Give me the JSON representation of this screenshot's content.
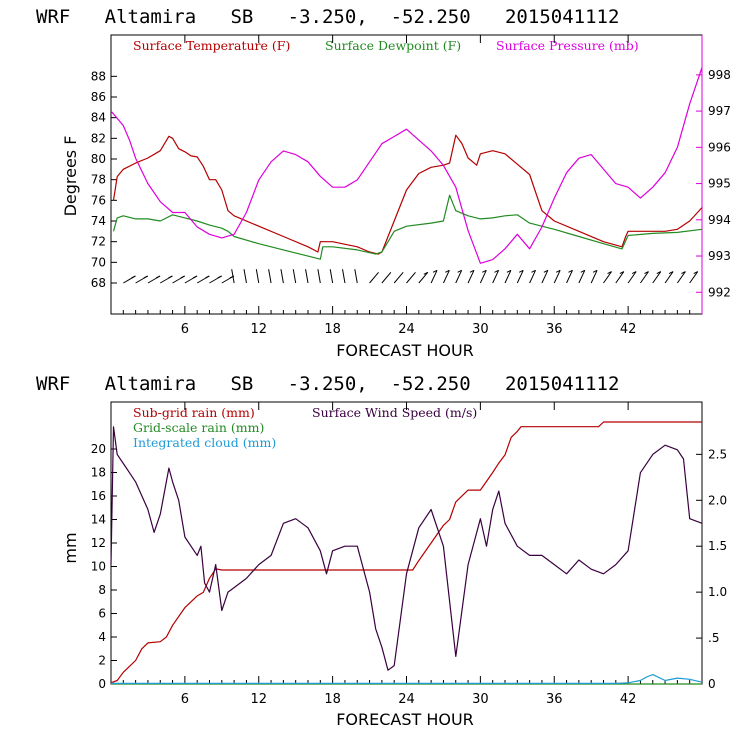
{
  "chart_data": [
    {
      "type": "line",
      "title": "WRF   Altamira   SB   -3.250,  -52.250   2015041112",
      "xlabel": "FORECAST HOUR",
      "ylabel": "Degrees F",
      "xlim": [
        0,
        48
      ],
      "xticks": [
        6,
        12,
        18,
        24,
        30,
        36,
        42
      ],
      "ylim_left": [
        65,
        92
      ],
      "yticks_left": [
        68,
        70,
        72,
        74,
        76,
        78,
        80,
        82,
        84,
        86,
        88
      ],
      "ylim_right": [
        991.4,
        999.1
      ],
      "yticks_right": [
        992,
        993,
        994,
        995,
        996,
        997,
        998
      ],
      "series": [
        {
          "name": "Surface Temperature (F)",
          "color": "#b40000",
          "axis": "left",
          "x": [
            0.2,
            0.5,
            1,
            2,
            3,
            4,
            4.7,
            5,
            5.5,
            6,
            6.5,
            7,
            7.5,
            8,
            8.5,
            9,
            9.5,
            10,
            12,
            14,
            16,
            16.8,
            17,
            18,
            20,
            21,
            21.7,
            22,
            23,
            24,
            25,
            26,
            27,
            27.5,
            28,
            28.5,
            29,
            29.7,
            30,
            31,
            32,
            33,
            34,
            35,
            36,
            38,
            40,
            41.5,
            41.8,
            42,
            44,
            45,
            46,
            47,
            48
          ],
          "y": [
            76,
            78.3,
            79,
            79.6,
            80.1,
            80.8,
            82.2,
            82,
            81,
            80.7,
            80.3,
            80.2,
            79.3,
            78,
            78,
            77,
            75,
            74.5,
            73.5,
            72.5,
            71.5,
            71,
            72,
            72,
            71.5,
            71,
            70.8,
            71,
            74,
            77,
            78.6,
            79.2,
            79.4,
            79.6,
            82.3,
            81.5,
            80.1,
            79.4,
            80.5,
            80.8,
            80.5,
            79.5,
            78.5,
            75,
            74,
            73,
            72,
            71.5,
            72.5,
            73,
            73,
            73,
            73.2,
            74,
            75.3
          ]
        },
        {
          "name": "Surface Dewpoint (F)",
          "color": "#228b22",
          "axis": "left",
          "x": [
            0.2,
            0.5,
            1,
            2,
            3,
            4,
            5,
            6,
            7,
            8,
            9,
            9.5,
            10,
            12,
            14,
            16,
            17,
            17.2,
            18,
            20,
            21.5,
            22,
            23,
            24,
            26,
            27,
            27.5,
            28,
            29,
            30,
            31,
            32,
            33,
            34,
            35,
            36,
            38,
            40,
            41.5,
            42,
            44,
            46,
            48
          ],
          "y": [
            73,
            74.3,
            74.5,
            74.2,
            74.2,
            74,
            74.6,
            74.3,
            74,
            73.6,
            73.3,
            73,
            72.5,
            71.8,
            71.2,
            70.6,
            70.3,
            71.5,
            71.5,
            71.2,
            70.8,
            71,
            73,
            73.5,
            73.8,
            74,
            76.5,
            75,
            74.5,
            74.2,
            74.3,
            74.5,
            74.6,
            73.8,
            73.5,
            73.2,
            72.5,
            71.8,
            71.3,
            72.6,
            72.8,
            72.9,
            73.2
          ]
        },
        {
          "name": "Surface Pressure (mb)",
          "color": "#dd00dd",
          "axis": "right",
          "x": [
            0,
            0.5,
            1,
            1.5,
            2,
            3,
            4,
            5,
            6,
            7,
            8,
            9,
            10,
            11,
            12,
            13,
            14,
            15,
            16,
            17,
            18,
            19,
            20,
            21,
            22,
            23,
            24,
            25,
            26,
            27,
            28,
            29,
            30,
            31,
            32,
            33,
            34,
            35,
            36,
            37,
            38,
            39,
            40,
            41,
            42,
            43,
            44,
            45,
            46,
            47,
            48
          ],
          "y": [
            997,
            996.8,
            996.6,
            996.2,
            995.7,
            995,
            994.5,
            994.2,
            994.2,
            993.8,
            993.6,
            993.5,
            993.6,
            994.2,
            995.1,
            995.6,
            995.9,
            995.8,
            995.6,
            995.2,
            994.9,
            994.9,
            995.1,
            995.6,
            996.1,
            996.3,
            996.5,
            996.2,
            995.9,
            995.5,
            994.9,
            993.7,
            992.8,
            992.9,
            993.2,
            993.6,
            993.2,
            993.8,
            994.6,
            995.3,
            995.7,
            995.8,
            995.4,
            995,
            994.9,
            994.6,
            994.9,
            995.3,
            996,
            997.2,
            998.2
          ]
        }
      ],
      "wind_barbs": {
        "description": "wind barbs at 68 F level, one per forecast hour"
      }
    },
    {
      "type": "line",
      "title": "WRF   Altamira   SB   -3.250,  -52.250   2015041112",
      "xlabel": "FORECAST HOUR",
      "ylabel": "mm",
      "xlim": [
        0,
        48
      ],
      "xticks": [
        6,
        12,
        18,
        24,
        30,
        36,
        42
      ],
      "ylim_left": [
        0,
        24
      ],
      "yticks_left": [
        0,
        2,
        4,
        6,
        8,
        10,
        12,
        14,
        16,
        18,
        20
      ],
      "ylim_right": [
        0,
        3.07
      ],
      "yticks_right": [
        0,
        0.5,
        1.0,
        1.5,
        2.0,
        2.5
      ],
      "ytick_labels_right": [
        "0",
        ".5",
        "1.0",
        "1.5",
        "2.0",
        "2.5"
      ],
      "series": [
        {
          "name": "Sub-grid rain (mm)",
          "color": "#b40000",
          "axis": "left",
          "x": [
            0,
            0.5,
            1,
            2,
            2.5,
            3,
            4,
            4.5,
            5,
            6,
            7,
            7.5,
            8,
            8.5,
            9,
            12,
            18,
            24,
            24.5,
            25,
            26,
            27,
            27.5,
            28,
            29,
            30,
            31,
            31.5,
            32,
            32.5,
            33,
            33.3,
            39.6,
            40,
            48
          ],
          "y": [
            0.1,
            0.3,
            1,
            2,
            3,
            3.5,
            3.6,
            4,
            5,
            6.5,
            7.5,
            7.8,
            9,
            9.8,
            9.7,
            9.7,
            9.7,
            9.7,
            9.7,
            10.5,
            12,
            13.5,
            14,
            15.5,
            16.5,
            16.5,
            18,
            18.8,
            19.5,
            21,
            21.5,
            21.9,
            21.9,
            22.3,
            22.3
          ]
        },
        {
          "name": "Grid-scale rain (mm)",
          "color": "#228b22",
          "axis": "left",
          "x": [
            0,
            48
          ],
          "y": [
            0,
            0
          ]
        },
        {
          "name": "Integrated cloud (mm)",
          "color": "#1f9bd6",
          "axis": "left",
          "x": [
            0,
            10,
            20,
            30,
            41,
            42,
            43,
            43.5,
            44,
            45,
            46,
            47,
            48
          ],
          "y": [
            0.05,
            0.05,
            0.05,
            0.05,
            0.05,
            0.1,
            0.3,
            0.6,
            0.8,
            0.3,
            0.5,
            0.4,
            0.15
          ]
        },
        {
          "name": "Surface Wind Speed (m/s)",
          "color": "#3a0040",
          "axis": "right",
          "x": [
            0,
            0.2,
            0.5,
            1,
            1.5,
            2,
            3,
            3.5,
            4,
            4.7,
            5,
            5.5,
            6,
            6.5,
            7,
            7.3,
            7.6,
            8,
            8.5,
            9,
            9.5,
            10,
            11,
            12,
            13,
            14,
            15,
            16,
            17,
            17.5,
            18,
            19,
            20,
            21,
            21.5,
            22,
            22.5,
            23,
            24,
            25,
            26,
            27,
            28,
            29,
            30,
            30.5,
            31,
            31.5,
            32,
            33,
            34,
            35,
            36,
            37,
            38,
            39,
            40,
            41,
            42,
            43,
            44,
            45,
            46,
            46.5,
            47,
            48
          ],
          "y": [
            1.3,
            2.8,
            2.5,
            2.4,
            2.3,
            2.2,
            1.9,
            1.65,
            1.85,
            2.35,
            2.2,
            2.0,
            1.6,
            1.5,
            1.4,
            1.5,
            1.1,
            1.0,
            1.3,
            0.8,
            1.0,
            1.05,
            1.15,
            1.3,
            1.4,
            1.75,
            1.8,
            1.7,
            1.45,
            1.2,
            1.45,
            1.5,
            1.5,
            1.0,
            0.6,
            0.4,
            0.15,
            0.2,
            1.2,
            1.7,
            1.9,
            1.5,
            0.3,
            1.3,
            1.8,
            1.5,
            1.9,
            2.1,
            1.75,
            1.5,
            1.4,
            1.4,
            1.3,
            1.2,
            1.35,
            1.25,
            1.2,
            1.3,
            1.45,
            2.3,
            2.5,
            2.6,
            2.55,
            2.45,
            1.8,
            1.75
          ]
        }
      ]
    }
  ]
}
